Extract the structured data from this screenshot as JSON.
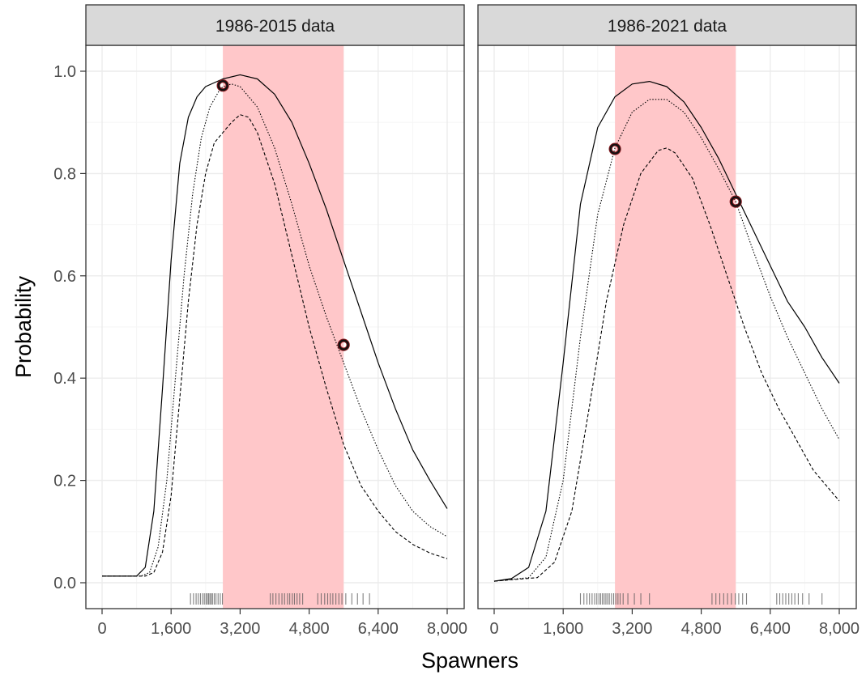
{
  "colors": {
    "band": "#ffc7c9",
    "strip": "#d9d9d9",
    "panel_border": "#333333",
    "grid_major": "#ececec",
    "grid_minor": "#f6f6f6",
    "line": "#000000",
    "rug": "#555555"
  },
  "chart_data": [
    {
      "type": "line",
      "title": "1986-2015 data",
      "xlabel": "Spawners",
      "ylabel": "Probability",
      "xlim": [
        0,
        8000
      ],
      "ylim": [
        0,
        1
      ],
      "x_ticks": [
        0,
        1600,
        3200,
        4800,
        6400,
        8000
      ],
      "x_tick_labels": [
        "0",
        "1,600",
        "3,200",
        "4,800",
        "6,400",
        "8,000"
      ],
      "y_ticks": [
        0,
        0.2,
        0.4,
        0.6,
        0.8,
        1.0
      ],
      "y_tick_labels": [
        "0.0",
        "0.2",
        "0.4",
        "0.6",
        "0.8",
        "1.0"
      ],
      "grid": true,
      "band": [
        2800,
        5600
      ],
      "series": [
        {
          "style": "solid",
          "points": [
            [
              0,
              0.013
            ],
            [
              800,
              0.013
            ],
            [
              1000,
              0.03
            ],
            [
              1200,
              0.14
            ],
            [
              1400,
              0.38
            ],
            [
              1600,
              0.63
            ],
            [
              1800,
              0.82
            ],
            [
              2000,
              0.91
            ],
            [
              2200,
              0.95
            ],
            [
              2400,
              0.97
            ],
            [
              2800,
              0.985
            ],
            [
              3200,
              0.993
            ],
            [
              3600,
              0.985
            ],
            [
              4000,
              0.955
            ],
            [
              4400,
              0.9
            ],
            [
              4800,
              0.82
            ],
            [
              5200,
              0.73
            ],
            [
              5600,
              0.63
            ],
            [
              6000,
              0.53
            ],
            [
              6400,
              0.43
            ],
            [
              6800,
              0.34
            ],
            [
              7200,
              0.26
            ],
            [
              7600,
              0.2
            ],
            [
              8000,
              0.145
            ]
          ]
        },
        {
          "style": "dotted",
          "points": [
            [
              0,
              0.013
            ],
            [
              900,
              0.013
            ],
            [
              1100,
              0.02
            ],
            [
              1300,
              0.07
            ],
            [
              1500,
              0.2
            ],
            [
              1700,
              0.4
            ],
            [
              1900,
              0.6
            ],
            [
              2100,
              0.76
            ],
            [
              2300,
              0.87
            ],
            [
              2500,
              0.93
            ],
            [
              2700,
              0.96
            ],
            [
              2800,
              0.97
            ],
            [
              3000,
              0.975
            ],
            [
              3200,
              0.97
            ],
            [
              3600,
              0.93
            ],
            [
              4000,
              0.85
            ],
            [
              4400,
              0.74
            ],
            [
              4800,
              0.62
            ],
            [
              5200,
              0.52
            ],
            [
              5600,
              0.43
            ],
            [
              6000,
              0.34
            ],
            [
              6400,
              0.26
            ],
            [
              6800,
              0.19
            ],
            [
              7200,
              0.14
            ],
            [
              7600,
              0.11
            ],
            [
              8000,
              0.09
            ]
          ]
        },
        {
          "style": "dashed",
          "points": [
            [
              0,
              0.013
            ],
            [
              1000,
              0.013
            ],
            [
              1200,
              0.02
            ],
            [
              1400,
              0.06
            ],
            [
              1600,
              0.17
            ],
            [
              1800,
              0.36
            ],
            [
              2000,
              0.55
            ],
            [
              2200,
              0.7
            ],
            [
              2400,
              0.8
            ],
            [
              2600,
              0.86
            ],
            [
              2800,
              0.88
            ],
            [
              3000,
              0.9
            ],
            [
              3200,
              0.915
            ],
            [
              3400,
              0.91
            ],
            [
              3600,
              0.88
            ],
            [
              4000,
              0.78
            ],
            [
              4400,
              0.64
            ],
            [
              4800,
              0.5
            ],
            [
              5200,
              0.38
            ],
            [
              5600,
              0.27
            ],
            [
              6000,
              0.19
            ],
            [
              6400,
              0.14
            ],
            [
              6800,
              0.1
            ],
            [
              7200,
              0.075
            ],
            [
              7600,
              0.058
            ],
            [
              8000,
              0.047
            ]
          ]
        }
      ],
      "markers": [
        [
          2800,
          0.972
        ],
        [
          5600,
          0.465
        ]
      ],
      "rug": [
        2050,
        2120,
        2180,
        2230,
        2280,
        2330,
        2370,
        2410,
        2440,
        2470,
        2500,
        2530,
        2560,
        2600,
        2640,
        2690,
        2740,
        2790,
        3900,
        3960,
        4030,
        4100,
        4170,
        4230,
        4300,
        4350,
        4410,
        4460,
        4520,
        4580,
        4650,
        5000,
        5080,
        5160,
        5230,
        5290,
        5350,
        5420,
        5490,
        5560,
        5650,
        5790,
        5920,
        6050,
        6200
      ]
    },
    {
      "type": "line",
      "title": "1986-2021 data",
      "xlabel": "Spawners",
      "ylabel": "Probability",
      "xlim": [
        0,
        8000
      ],
      "ylim": [
        0,
        1
      ],
      "x_ticks": [
        0,
        1600,
        3200,
        4800,
        6400,
        8000
      ],
      "x_tick_labels": [
        "0",
        "1,600",
        "3,200",
        "4,800",
        "6,400",
        "8,000"
      ],
      "y_ticks": [
        0,
        0.2,
        0.4,
        0.6,
        0.8,
        1.0
      ],
      "y_tick_labels": [
        "0.0",
        "0.2",
        "0.4",
        "0.6",
        "0.8",
        "1.0"
      ],
      "grid": true,
      "band": [
        2800,
        5600
      ],
      "series": [
        {
          "style": "solid",
          "points": [
            [
              0,
              0.003
            ],
            [
              400,
              0.008
            ],
            [
              800,
              0.03
            ],
            [
              1200,
              0.14
            ],
            [
              1600,
              0.43
            ],
            [
              2000,
              0.74
            ],
            [
              2400,
              0.89
            ],
            [
              2800,
              0.95
            ],
            [
              3200,
              0.975
            ],
            [
              3600,
              0.98
            ],
            [
              4000,
              0.97
            ],
            [
              4400,
              0.94
            ],
            [
              4800,
              0.89
            ],
            [
              5200,
              0.83
            ],
            [
              5600,
              0.76
            ],
            [
              6000,
              0.69
            ],
            [
              6400,
              0.62
            ],
            [
              6800,
              0.55
            ],
            [
              7200,
              0.5
            ],
            [
              7600,
              0.44
            ],
            [
              8000,
              0.39
            ]
          ]
        },
        {
          "style": "dotted",
          "points": [
            [
              0,
              0.003
            ],
            [
              800,
              0.01
            ],
            [
              1200,
              0.05
            ],
            [
              1600,
              0.2
            ],
            [
              2000,
              0.48
            ],
            [
              2400,
              0.72
            ],
            [
              2800,
              0.85
            ],
            [
              3200,
              0.92
            ],
            [
              3600,
              0.945
            ],
            [
              4000,
              0.945
            ],
            [
              4400,
              0.92
            ],
            [
              4800,
              0.87
            ],
            [
              5200,
              0.81
            ],
            [
              5600,
              0.745
            ],
            [
              6000,
              0.65
            ],
            [
              6400,
              0.56
            ],
            [
              6800,
              0.48
            ],
            [
              7200,
              0.41
            ],
            [
              7600,
              0.34
            ],
            [
              8000,
              0.28
            ]
          ]
        },
        {
          "style": "dashed",
          "points": [
            [
              0,
              0.003
            ],
            [
              1000,
              0.01
            ],
            [
              1400,
              0.04
            ],
            [
              1800,
              0.14
            ],
            [
              2200,
              0.34
            ],
            [
              2600,
              0.55
            ],
            [
              3000,
              0.7
            ],
            [
              3400,
              0.8
            ],
            [
              3800,
              0.845
            ],
            [
              4000,
              0.85
            ],
            [
              4200,
              0.84
            ],
            [
              4600,
              0.79
            ],
            [
              5000,
              0.7
            ],
            [
              5400,
              0.6
            ],
            [
              5800,
              0.5
            ],
            [
              6200,
              0.41
            ],
            [
              6600,
              0.34
            ],
            [
              7000,
              0.28
            ],
            [
              7400,
              0.22
            ],
            [
              8000,
              0.16
            ]
          ]
        }
      ],
      "markers": [
        [
          2800,
          0.848
        ],
        [
          5600,
          0.745
        ]
      ],
      "rug": [
        2000,
        2080,
        2150,
        2210,
        2270,
        2330,
        2380,
        2430,
        2470,
        2510,
        2550,
        2590,
        2630,
        2670,
        2720,
        2770,
        2820,
        2870,
        2920,
        2990,
        3100,
        3250,
        3400,
        3600,
        5050,
        5140,
        5230,
        5320,
        5410,
        5500,
        5590,
        5670,
        5760,
        5850,
        6550,
        6620,
        6690,
        6760,
        6830,
        6900,
        6970,
        7050,
        7150,
        7300,
        7600
      ]
    }
  ]
}
